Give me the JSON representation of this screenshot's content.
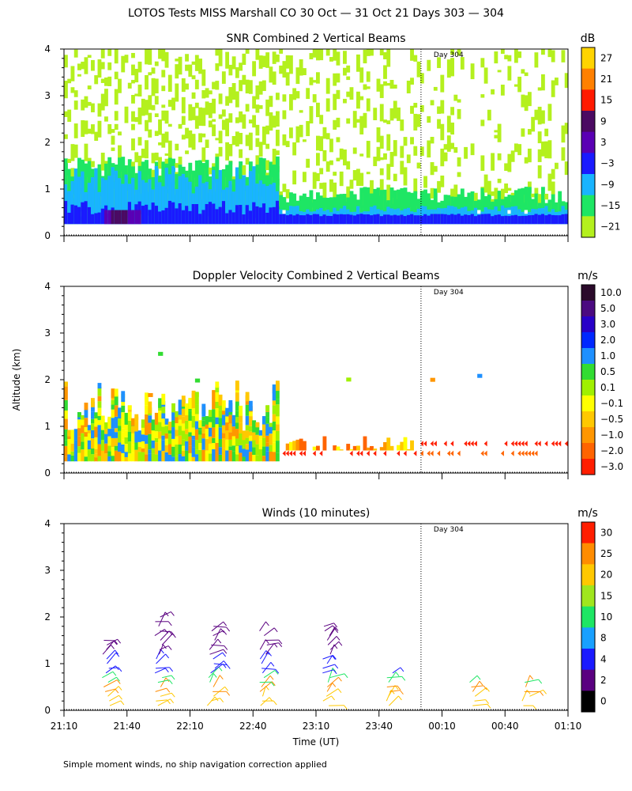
{
  "title": "LOTOS Tests MISS Marshall CO  30 Oct — 31 Oct 21 Days 303 — 304",
  "footnote": "Simple moment winds, no ship navigation correction applied",
  "shared_axes": {
    "ylabel": "Altitude (km)",
    "xlabel": "Time (UT)",
    "y_ticks": [
      "0",
      "1",
      "2",
      "3",
      "4"
    ],
    "x_ticks": [
      "21:10",
      "21:40",
      "22:10",
      "22:40",
      "23:10",
      "23:40",
      "00:10",
      "00:40",
      "01:10"
    ],
    "day_marker_label": "Day 304"
  },
  "chart_data": [
    {
      "type": "heatmap",
      "title": "SNR Combined 2 Vertical Beams",
      "unit": "dB",
      "xlabel": "Time (UT)",
      "ylabel": "Altitude (km)",
      "xlim": [
        "21:10",
        "01:10"
      ],
      "ylim": [
        0,
        4
      ],
      "day_boundary": "00:00",
      "colorbar": {
        "labels": [
          "27",
          "21",
          "15",
          "9",
          "3",
          "−3",
          "−9",
          "−15",
          "−21"
        ],
        "colors": [
          "#ffd400",
          "#ff8000",
          "#ff1a00",
          "#4b0a62",
          "#5a00b4",
          "#1a1aff",
          "#19b4ff",
          "#1ee664",
          "#b4f01e"
        ]
      },
      "layers": [
        {
          "level": "-21 to -15 dB",
          "altitude_km": [
            0.2,
            3.9
          ],
          "note": "scattered returns throughout"
        },
        {
          "level": "-15 to -3 dB",
          "altitude_km": [
            0.2,
            1.8
          ],
          "time_range": [
            "21:10",
            "22:50"
          ]
        },
        {
          "level": "-3 to 3 dB",
          "altitude_km": [
            0.2,
            0.6
          ],
          "note": "persistent near-surface layer"
        },
        {
          "level": "3 to 9 dB",
          "altitude_km": [
            0.2,
            0.5
          ],
          "time_range": [
            "21:30",
            "21:50"
          ]
        }
      ]
    },
    {
      "type": "heatmap",
      "title": "Doppler Velocity Combined 2 Vertical Beams",
      "unit": "m/s",
      "xlabel": "Time (UT)",
      "ylabel": "Altitude (km)",
      "xlim": [
        "21:10",
        "01:10"
      ],
      "ylim": [
        0,
        4
      ],
      "day_boundary": "00:00",
      "colorbar": {
        "labels": [
          "10.0",
          "5.0",
          "3.0",
          "2.0",
          "1.0",
          "0.5",
          "0.1",
          "−0.1",
          "−0.5",
          "−1.0",
          "−2.0",
          "−3.0"
        ],
        "colors": [
          "#2a0a2a",
          "#4b0a80",
          "#2800c8",
          "#0028ff",
          "#1e90ff",
          "#32dc32",
          "#a0f000",
          "#ffff00",
          "#ffc800",
          "#ff9600",
          "#ff6400",
          "#ff1e00"
        ]
      },
      "layers": [
        {
          "level": "mixed -1.0 to +1.0 m/s",
          "altitude_km": [
            0.2,
            2.0
          ],
          "time_range": [
            "21:10",
            "22:50"
          ]
        },
        {
          "level": "-0.5 to -3.0 m/s",
          "altitude_km": [
            0.2,
            0.8
          ],
          "time_range": [
            "22:50",
            "01:10"
          ]
        }
      ]
    },
    {
      "type": "scatter",
      "title": "Winds (10 minutes)",
      "unit": "m/s",
      "xlabel": "Time (UT)",
      "ylabel": "Altitude (km)",
      "xlim": [
        "21:10",
        "01:10"
      ],
      "ylim": [
        0,
        4
      ],
      "day_boundary": "00:00",
      "colorbar": {
        "labels": [
          "30",
          "25",
          "20",
          "15",
          "10",
          "8",
          "4",
          "2",
          "0"
        ],
        "colors": [
          "#ff1e00",
          "#ff8c00",
          "#ffc800",
          "#a0e61e",
          "#1ee664",
          "#19a0ff",
          "#1a1aff",
          "#5a0080",
          "#000000"
        ]
      },
      "profiles": [
        {
          "time": "21:30",
          "top_km": 1.6
        },
        {
          "time": "21:55",
          "top_km": 2.1
        },
        {
          "time": "22:20",
          "top_km": 1.9
        },
        {
          "time": "22:45",
          "top_km": 1.8
        },
        {
          "time": "23:15",
          "top_km": 1.9
        },
        {
          "time": "23:45",
          "top_km": 0.8
        },
        {
          "time": "00:25",
          "top_km": 0.6
        },
        {
          "time": "00:50",
          "top_km": 0.6
        }
      ]
    }
  ]
}
